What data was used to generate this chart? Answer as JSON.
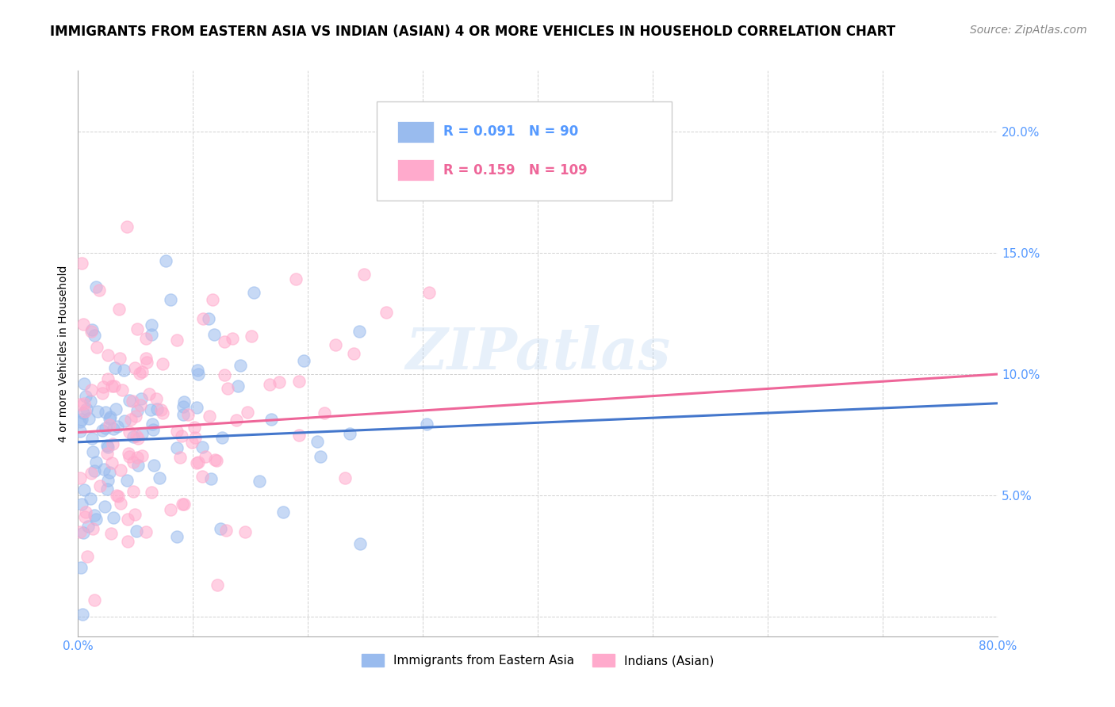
{
  "title": "IMMIGRANTS FROM EASTERN ASIA VS INDIAN (ASIAN) 4 OR MORE VEHICLES IN HOUSEHOLD CORRELATION CHART",
  "source": "Source: ZipAtlas.com",
  "ylabel": "4 or more Vehicles in Household",
  "xlim": [
    0.0,
    0.8
  ],
  "ylim": [
    -0.008,
    0.225
  ],
  "xticks": [
    0.0,
    0.1,
    0.2,
    0.3,
    0.4,
    0.5,
    0.6,
    0.7,
    0.8
  ],
  "xtick_labels": [
    "0.0%",
    "",
    "",
    "",
    "",
    "",
    "",
    "",
    "80.0%"
  ],
  "ytick_vals": [
    0.0,
    0.05,
    0.1,
    0.15,
    0.2
  ],
  "ytick_labels": [
    "",
    "5.0%",
    "10.0%",
    "15.0%",
    "20.0%"
  ],
  "blue_color": "#99BBEE",
  "pink_color": "#FFAACC",
  "blue_line_color": "#4477CC",
  "pink_line_color": "#EE6699",
  "blue_R": 0.091,
  "blue_N": 90,
  "pink_R": 0.159,
  "pink_N": 109,
  "blue_label": "Immigrants from Eastern Asia",
  "pink_label": "Indians (Asian)",
  "watermark": "ZIPatlas",
  "axis_color": "#5599FF",
  "title_fontsize": 12,
  "source_fontsize": 10,
  "tick_fontsize": 11,
  "legend_fontsize": 12,
  "blue_trend_start_y": 0.072,
  "blue_trend_end_y": 0.088,
  "pink_trend_start_y": 0.076,
  "pink_trend_end_y": 0.1
}
